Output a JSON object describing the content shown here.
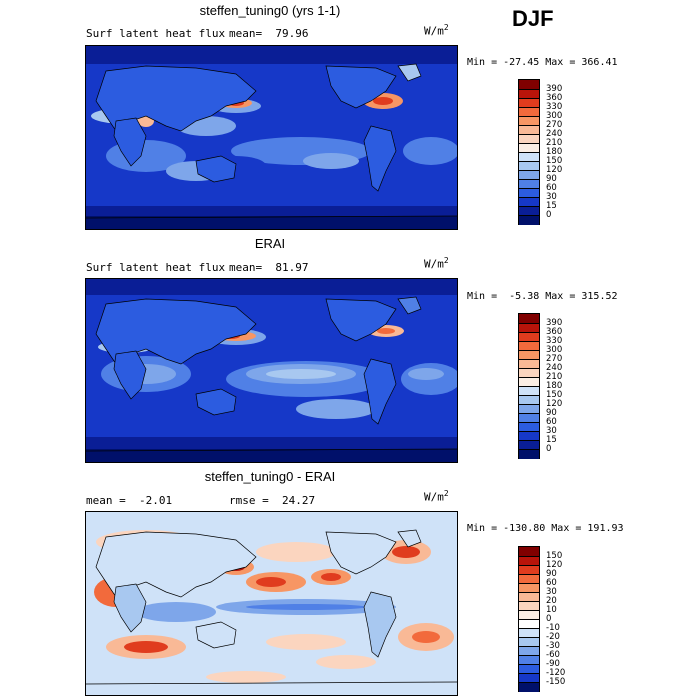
{
  "season": "DJF",
  "panels": [
    {
      "title": "steffen_tuning0 (yrs 1-1)",
      "subtitle_left": "Surf latent heat flux",
      "mean_text": "mean=  79.96",
      "rmse_text": "",
      "units_base": "W/m",
      "units_exp": "2",
      "minmax": "Min = -27.45 Max = 366.41",
      "levels": [
        "390",
        "360",
        "330",
        "300",
        "270",
        "240",
        "210",
        "180",
        "150",
        "120",
        "90",
        "60",
        "30",
        "15",
        "0"
      ]
    },
    {
      "title": "ERAI",
      "subtitle_left": "Surf latent heat flux",
      "mean_text": "mean=  81.97",
      "rmse_text": "",
      "units_base": "W/m",
      "units_exp": "2",
      "minmax": "Min =  -5.38 Max = 315.52",
      "levels": [
        "390",
        "360",
        "330",
        "300",
        "270",
        "240",
        "210",
        "180",
        "150",
        "120",
        "90",
        "60",
        "30",
        "15",
        "0"
      ]
    },
    {
      "title": "steffen_tuning0 - ERAI",
      "subtitle_left": "mean =  -2.01",
      "mean_text": "",
      "rmse_text": "rmse =  24.27",
      "units_base": "W/m",
      "units_exp": "2",
      "minmax": "Min = -130.80 Max = 191.93",
      "levels": [
        "150",
        "120",
        "90",
        "60",
        "30",
        "20",
        "10",
        "0",
        "-10",
        "-20",
        "-30",
        "-60",
        "-90",
        "-120",
        "-150"
      ]
    }
  ],
  "colors": {
    "seq": [
      "#800000",
      "#b8140a",
      "#e03c1e",
      "#f26a3c",
      "#f79664",
      "#f9b996",
      "#fbd5bf",
      "#fbeee4",
      "#cfe2f8",
      "#a8c8f0",
      "#7ea6ea",
      "#5080e6",
      "#2c5ce0",
      "#1638c8",
      "#0a1e96",
      "#00106a"
    ],
    "div": [
      "#800000",
      "#b8140a",
      "#e03c1e",
      "#f26a3c",
      "#f79664",
      "#f9b996",
      "#fbd5bf",
      "#fbeee4",
      "#ffffff",
      "#cfe2f8",
      "#a8c8f0",
      "#7ea6ea",
      "#5080e6",
      "#2c5ce0",
      "#1638c8",
      "#00106a"
    ]
  }
}
